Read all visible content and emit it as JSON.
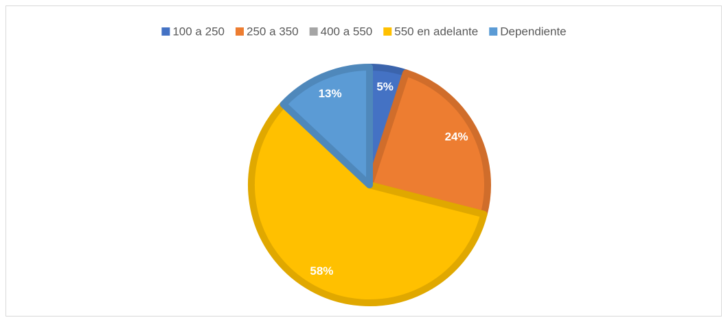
{
  "chart_data": {
    "type": "pie",
    "categories": [
      "100 a 250",
      "250 a 350",
      "400 a 550",
      "550 en adelante",
      "Dependiente"
    ],
    "values": [
      5,
      24,
      0,
      58,
      13
    ],
    "value_labels": [
      "5%",
      "24%",
      null,
      "58%",
      "13%"
    ],
    "colors": [
      "#4472c4",
      "#ed7d31",
      "#a5a5a5",
      "#ffc000",
      "#5b9bd5"
    ],
    "legend": "top"
  }
}
